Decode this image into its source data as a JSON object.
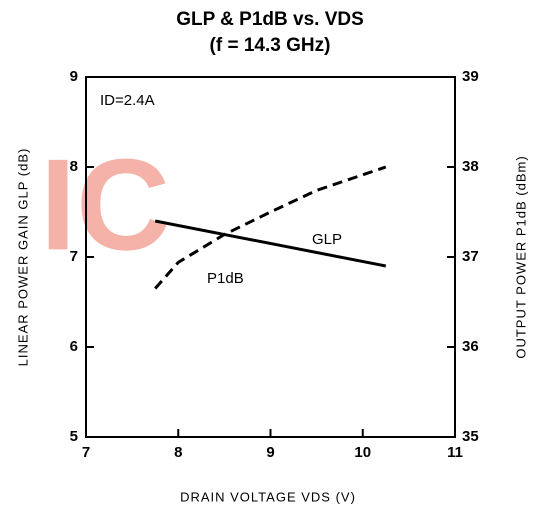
{
  "chart_data": {
    "type": "line",
    "title": "GLP & P1dB vs. VDS",
    "subtitle": "(f = 14.3 GHz)",
    "xlabel": "DRAIN VOLTAGE VDS (V)",
    "ylabel": "LINEAR POWER GAIN GLP (dB)",
    "y2label": "OUTPUT POWER P1dB (dBm)",
    "annotations": [
      "ID=2.4A"
    ],
    "watermark": "IC",
    "xlim": [
      7,
      11
    ],
    "xticks": [
      7,
      8,
      9,
      10,
      11
    ],
    "ylim": [
      5,
      9
    ],
    "yticks": [
      5,
      6,
      7,
      8,
      9
    ],
    "y2lim": [
      35,
      39
    ],
    "y2ticks": [
      35,
      36,
      37,
      38,
      39
    ],
    "series": [
      {
        "name": "GLP",
        "color": "#000000",
        "dashed": false,
        "axis": "y",
        "x": [
          7.75,
          10.25
        ],
        "values": [
          7.4,
          6.9
        ]
      },
      {
        "name": "P1dB",
        "color": "#000000",
        "dashed": true,
        "axis": "y2",
        "x": [
          7.75,
          8,
          8.5,
          9,
          9.5,
          10.25
        ],
        "values": [
          36.65,
          36.94,
          37.25,
          37.5,
          37.74,
          38.0
        ]
      }
    ]
  }
}
